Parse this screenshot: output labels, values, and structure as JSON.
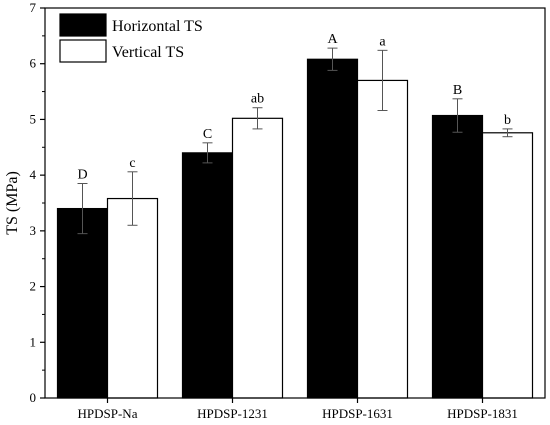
{
  "chart_data": {
    "type": "bar",
    "categories": [
      "HPDSP-Na",
      "HPDSP-1231",
      "HPDSP-1631",
      "HPDSP-1831"
    ],
    "series": [
      {
        "name": "Horizontal  TS",
        "color": "#000000",
        "values": [
          3.4,
          4.4,
          6.08,
          5.07
        ],
        "errors": [
          0.45,
          0.18,
          0.2,
          0.3
        ],
        "labels": [
          "D",
          "C",
          "A",
          "B"
        ]
      },
      {
        "name": "Vertical TS",
        "color": "#ffffff",
        "values": [
          3.58,
          5.02,
          5.7,
          4.76
        ],
        "errors": [
          0.48,
          0.19,
          0.54,
          0.07
        ],
        "labels": [
          "c",
          "ab",
          "a",
          "b"
        ]
      }
    ],
    "title": "",
    "xlabel": "",
    "ylabel": "TS (MPa)",
    "ylim": [
      0,
      7
    ],
    "yticks": [
      0,
      1,
      2,
      3,
      4,
      5,
      6,
      7
    ],
    "grid": false,
    "legend_position": "top-left"
  }
}
